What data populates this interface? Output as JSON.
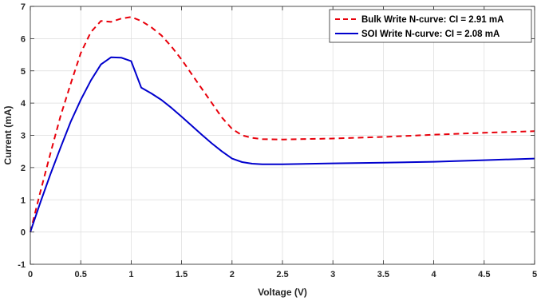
{
  "chart_data": {
    "type": "line",
    "title": "",
    "xlabel": "Voltage (V)",
    "ylabel": "Current (mA)",
    "xlim": [
      0,
      5
    ],
    "ylim": [
      -1,
      7
    ],
    "xticks": [
      0,
      0.5,
      1,
      1.5,
      2,
      2.5,
      3,
      3.5,
      4,
      4.5,
      5
    ],
    "xtick_labels": [
      "0",
      "0.5",
      "1",
      "1.5",
      "2",
      "2.5",
      "3",
      "3.5",
      "4",
      "4.5",
      "5"
    ],
    "yticks": [
      -1,
      0,
      1,
      2,
      3,
      4,
      5,
      6,
      7
    ],
    "ytick_labels": [
      "-1",
      "0",
      "1",
      "2",
      "3",
      "4",
      "5",
      "6",
      "7"
    ],
    "grid": true,
    "legend_position": "top-right",
    "series": [
      {
        "name": "Bulk Write N-curve: CI = 2.91 mA",
        "color": "#e8000b",
        "style": "dashed",
        "x": [
          0,
          0.1,
          0.2,
          0.3,
          0.4,
          0.5,
          0.6,
          0.7,
          0.8,
          0.9,
          1.0,
          1.1,
          1.2,
          1.3,
          1.4,
          1.5,
          1.6,
          1.7,
          1.8,
          1.9,
          2.0,
          2.1,
          2.2,
          2.3,
          2.5,
          3.0,
          3.5,
          4.0,
          4.5,
          5.0
        ],
        "y": [
          0,
          1.25,
          2.45,
          3.6,
          4.6,
          5.55,
          6.2,
          6.55,
          6.52,
          6.62,
          6.67,
          6.55,
          6.35,
          6.1,
          5.75,
          5.35,
          4.9,
          4.45,
          4.0,
          3.55,
          3.2,
          3.0,
          2.92,
          2.88,
          2.87,
          2.9,
          2.95,
          3.02,
          3.08,
          3.13
        ]
      },
      {
        "name": "SOI Write N-curve: CI = 2.08 mA",
        "color": "#0000cd",
        "style": "solid",
        "x": [
          0,
          0.1,
          0.2,
          0.3,
          0.4,
          0.5,
          0.6,
          0.7,
          0.8,
          0.9,
          1.0,
          1.1,
          1.2,
          1.3,
          1.4,
          1.5,
          1.6,
          1.7,
          1.8,
          1.9,
          2.0,
          2.1,
          2.2,
          2.3,
          2.5,
          3.0,
          3.5,
          4.0,
          4.5,
          5.0
        ],
        "y": [
          0,
          0.92,
          1.8,
          2.62,
          3.42,
          4.1,
          4.7,
          5.2,
          5.42,
          5.41,
          5.3,
          4.48,
          4.3,
          4.1,
          3.85,
          3.58,
          3.3,
          3.02,
          2.75,
          2.5,
          2.28,
          2.17,
          2.12,
          2.1,
          2.1,
          2.13,
          2.15,
          2.18,
          2.23,
          2.28
        ]
      }
    ]
  }
}
